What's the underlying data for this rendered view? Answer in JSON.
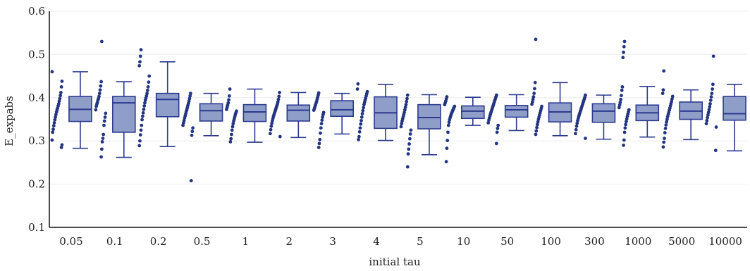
{
  "chart_data": {
    "type": "box",
    "title": "",
    "xlabel": "initial tau",
    "ylabel": "E_expabs",
    "ylim": [
      0.1,
      0.6
    ],
    "yticks": [
      0.1,
      0.2,
      0.3,
      0.4,
      0.5,
      0.6
    ],
    "ytick_labels": [
      "0.1",
      "0.2",
      "0.3",
      "0.4",
      "0.5",
      "0.6"
    ],
    "grid": "horizontal",
    "categories": [
      "0.05",
      "0.1",
      "0.2",
      "0.5",
      "1",
      "2",
      "3",
      "4",
      "5",
      "10",
      "50",
      "100",
      "300",
      "1000",
      "5000",
      "10000"
    ],
    "colors": {
      "box_fill": "#8f9dc9",
      "box_stroke": "#2b3a8f",
      "point": "#233580",
      "grid": "#ececec",
      "axis": "#111111"
    },
    "boxes": [
      {
        "category": "0.05",
        "min": 0.283,
        "q1": 0.345,
        "median": 0.373,
        "q3": 0.403,
        "max": 0.46
      },
      {
        "category": "0.1",
        "min": 0.262,
        "q1": 0.32,
        "median": 0.388,
        "q3": 0.403,
        "max": 0.437
      },
      {
        "category": "0.2",
        "min": 0.287,
        "q1": 0.356,
        "median": 0.396,
        "q3": 0.41,
        "max": 0.483
      },
      {
        "category": "0.5",
        "min": 0.312,
        "q1": 0.346,
        "median": 0.37,
        "q3": 0.386,
        "max": 0.41
      },
      {
        "category": "1",
        "min": 0.297,
        "q1": 0.345,
        "median": 0.367,
        "q3": 0.384,
        "max": 0.42
      },
      {
        "category": "2",
        "min": 0.308,
        "q1": 0.346,
        "median": 0.371,
        "q3": 0.383,
        "max": 0.412
      },
      {
        "category": "3",
        "min": 0.316,
        "q1": 0.357,
        "median": 0.372,
        "q3": 0.393,
        "max": 0.41
      },
      {
        "category": "4",
        "min": 0.301,
        "q1": 0.329,
        "median": 0.365,
        "q3": 0.402,
        "max": 0.431
      },
      {
        "category": "5",
        "min": 0.268,
        "q1": 0.328,
        "median": 0.354,
        "q3": 0.384,
        "max": 0.407
      },
      {
        "category": "10",
        "min": 0.336,
        "q1": 0.352,
        "median": 0.369,
        "q3": 0.381,
        "max": 0.401
      },
      {
        "category": "50",
        "min": 0.324,
        "q1": 0.355,
        "median": 0.372,
        "q3": 0.382,
        "max": 0.407
      },
      {
        "category": "100",
        "min": 0.312,
        "q1": 0.344,
        "median": 0.367,
        "q3": 0.388,
        "max": 0.435
      },
      {
        "category": "300",
        "min": 0.304,
        "q1": 0.343,
        "median": 0.369,
        "q3": 0.386,
        "max": 0.406
      },
      {
        "category": "1000",
        "min": 0.309,
        "q1": 0.347,
        "median": 0.365,
        "q3": 0.383,
        "max": 0.426
      },
      {
        "category": "5000",
        "min": 0.303,
        "q1": 0.35,
        "median": 0.369,
        "q3": 0.39,
        "max": 0.418
      },
      {
        "category": "10000",
        "min": 0.277,
        "q1": 0.348,
        "median": 0.363,
        "q3": 0.403,
        "max": 0.431
      }
    ],
    "points": [
      {
        "category": "0.05",
        "values": [
          0.46,
          0.438,
          0.425,
          0.412,
          0.405,
          0.398,
          0.392,
          0.386,
          0.381,
          0.376,
          0.372,
          0.367,
          0.361,
          0.355,
          0.349,
          0.342,
          0.335,
          0.327,
          0.32,
          0.302,
          0.291,
          0.285
        ]
      },
      {
        "category": "0.1",
        "values": [
          0.53,
          0.437,
          0.427,
          0.418,
          0.41,
          0.403,
          0.398,
          0.394,
          0.389,
          0.385,
          0.38,
          0.372,
          0.364,
          0.355,
          0.346,
          0.336,
          0.315,
          0.306,
          0.298,
          0.281,
          0.263
        ]
      },
      {
        "category": "0.2",
        "values": [
          0.511,
          0.496,
          0.483,
          0.474,
          0.45,
          0.436,
          0.425,
          0.417,
          0.41,
          0.404,
          0.399,
          0.394,
          0.388,
          0.381,
          0.373,
          0.365,
          0.357,
          0.349,
          0.336,
          0.325,
          0.314,
          0.3,
          0.289
        ]
      },
      {
        "category": "0.5",
        "values": [
          0.41,
          0.404,
          0.398,
          0.392,
          0.387,
          0.382,
          0.377,
          0.372,
          0.368,
          0.363,
          0.358,
          0.353,
          0.347,
          0.342,
          0.336,
          0.33,
          0.322,
          0.313,
          0.208
        ]
      },
      {
        "category": "1",
        "values": [
          0.42,
          0.404,
          0.395,
          0.388,
          0.383,
          0.378,
          0.373,
          0.369,
          0.365,
          0.361,
          0.356,
          0.351,
          0.346,
          0.34,
          0.333,
          0.325,
          0.315,
          0.305,
          0.298
        ]
      },
      {
        "category": "2",
        "values": [
          0.412,
          0.403,
          0.396,
          0.39,
          0.385,
          0.381,
          0.377,
          0.373,
          0.369,
          0.365,
          0.361,
          0.357,
          0.352,
          0.347,
          0.341,
          0.334,
          0.326,
          0.317,
          0.31
        ]
      },
      {
        "category": "3",
        "values": [
          0.411,
          0.406,
          0.401,
          0.396,
          0.391,
          0.387,
          0.383,
          0.379,
          0.375,
          0.371,
          0.366,
          0.361,
          0.355,
          0.348,
          0.34,
          0.33,
          0.318,
          0.303,
          0.294,
          0.285
        ]
      },
      {
        "category": "4",
        "values": [
          0.432,
          0.42,
          0.414,
          0.409,
          0.404,
          0.399,
          0.394,
          0.389,
          0.384,
          0.377,
          0.37,
          0.363,
          0.355,
          0.347,
          0.339,
          0.33,
          0.321,
          0.31,
          0.303
        ]
      },
      {
        "category": "5",
        "values": [
          0.406,
          0.398,
          0.391,
          0.384,
          0.378,
          0.372,
          0.366,
          0.361,
          0.356,
          0.351,
          0.346,
          0.34,
          0.333,
          0.325,
          0.316,
          0.305,
          0.293,
          0.281,
          0.27,
          0.24
        ]
      },
      {
        "category": "10",
        "values": [
          0.402,
          0.397,
          0.392,
          0.388,
          0.384,
          0.38,
          0.377,
          0.374,
          0.371,
          0.368,
          0.365,
          0.362,
          0.358,
          0.354,
          0.349,
          0.343,
          0.336,
          0.32,
          0.301,
          0.283,
          0.252
        ]
      },
      {
        "category": "50",
        "values": [
          0.406,
          0.402,
          0.398,
          0.394,
          0.39,
          0.386,
          0.382,
          0.378,
          0.374,
          0.37,
          0.366,
          0.362,
          0.358,
          0.353,
          0.348,
          0.342,
          0.336,
          0.329,
          0.32,
          0.294
        ]
      },
      {
        "category": "100",
        "values": [
          0.535,
          0.435,
          0.421,
          0.41,
          0.402,
          0.396,
          0.39,
          0.385,
          0.38,
          0.375,
          0.37,
          0.365,
          0.36,
          0.355,
          0.35,
          0.344,
          0.338,
          0.331,
          0.323,
          0.315
        ]
      },
      {
        "category": "300",
        "values": [
          0.406,
          0.401,
          0.397,
          0.393,
          0.389,
          0.385,
          0.381,
          0.377,
          0.373,
          0.369,
          0.365,
          0.361,
          0.357,
          0.352,
          0.347,
          0.341,
          0.334,
          0.326,
          0.317,
          0.306
        ]
      },
      {
        "category": "1000",
        "values": [
          0.53,
          0.518,
          0.505,
          0.493,
          0.425,
          0.417,
          0.405,
          0.396,
          0.389,
          0.383,
          0.377,
          0.372,
          0.367,
          0.362,
          0.357,
          0.351,
          0.345,
          0.338,
          0.33,
          0.32,
          0.302,
          0.29
        ]
      },
      {
        "category": "5000",
        "values": [
          0.462,
          0.418,
          0.41,
          0.403,
          0.397,
          0.391,
          0.386,
          0.381,
          0.376,
          0.371,
          0.366,
          0.361,
          0.356,
          0.35,
          0.344,
          0.337,
          0.329,
          0.319,
          0.306,
          0.297,
          0.286
        ]
      },
      {
        "category": "10000",
        "values": [
          0.496,
          0.431,
          0.42,
          0.41,
          0.402,
          0.394,
          0.386,
          0.379,
          0.372,
          0.366,
          0.36,
          0.354,
          0.347,
          0.34,
          0.332,
          0.278
        ]
      }
    ]
  }
}
